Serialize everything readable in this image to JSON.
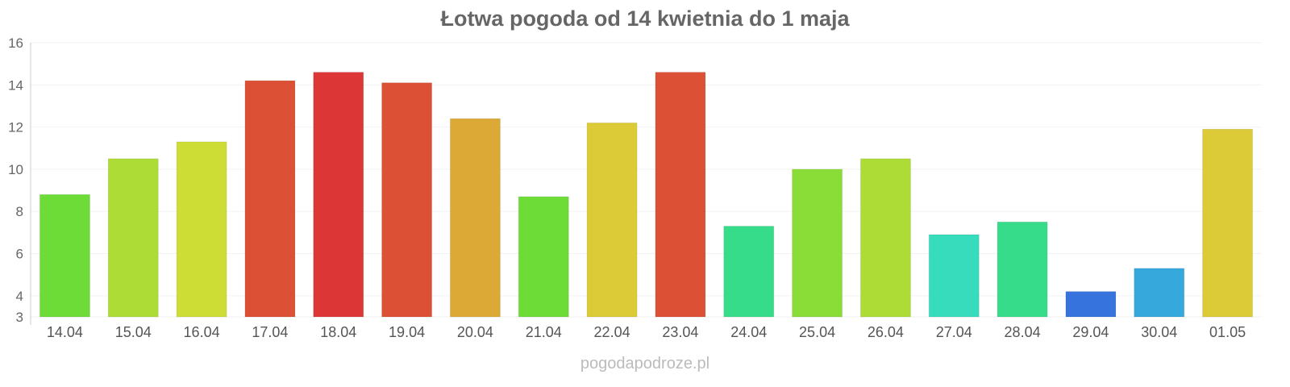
{
  "chart_data": {
    "type": "bar",
    "title": "Łotwa pogoda od 14 kwietnia do 1 maja",
    "categories": [
      "14.04",
      "15.04",
      "16.04",
      "17.04",
      "18.04",
      "19.04",
      "20.04",
      "21.04",
      "22.04",
      "23.04",
      "24.04",
      "25.04",
      "26.04",
      "27.04",
      "28.04",
      "29.04",
      "30.04",
      "01.05"
    ],
    "values": [
      8.8,
      10.5,
      11.3,
      14.2,
      14.6,
      14.1,
      12.4,
      8.7,
      12.2,
      14.6,
      7.3,
      10.0,
      10.5,
      6.9,
      7.5,
      4.2,
      5.3,
      11.9
    ],
    "colors": [
      "#6ddc36",
      "#addc36",
      "#cedc36",
      "#dc5036",
      "#dc3636",
      "#dc5036",
      "#dca836",
      "#6ddc36",
      "#dcca36",
      "#dc5036",
      "#36dc8a",
      "#8adc36",
      "#addc36",
      "#36dcbc",
      "#36dc8a",
      "#3673dc",
      "#36a8dc",
      "#dcca36"
    ],
    "yticks": [
      3,
      4,
      6,
      8,
      10,
      12,
      14,
      16
    ],
    "ylim": [
      3,
      16
    ],
    "xlabel": "",
    "ylabel": "",
    "grid": true,
    "legend": "none"
  },
  "footer": "pogodapodroze.pl"
}
